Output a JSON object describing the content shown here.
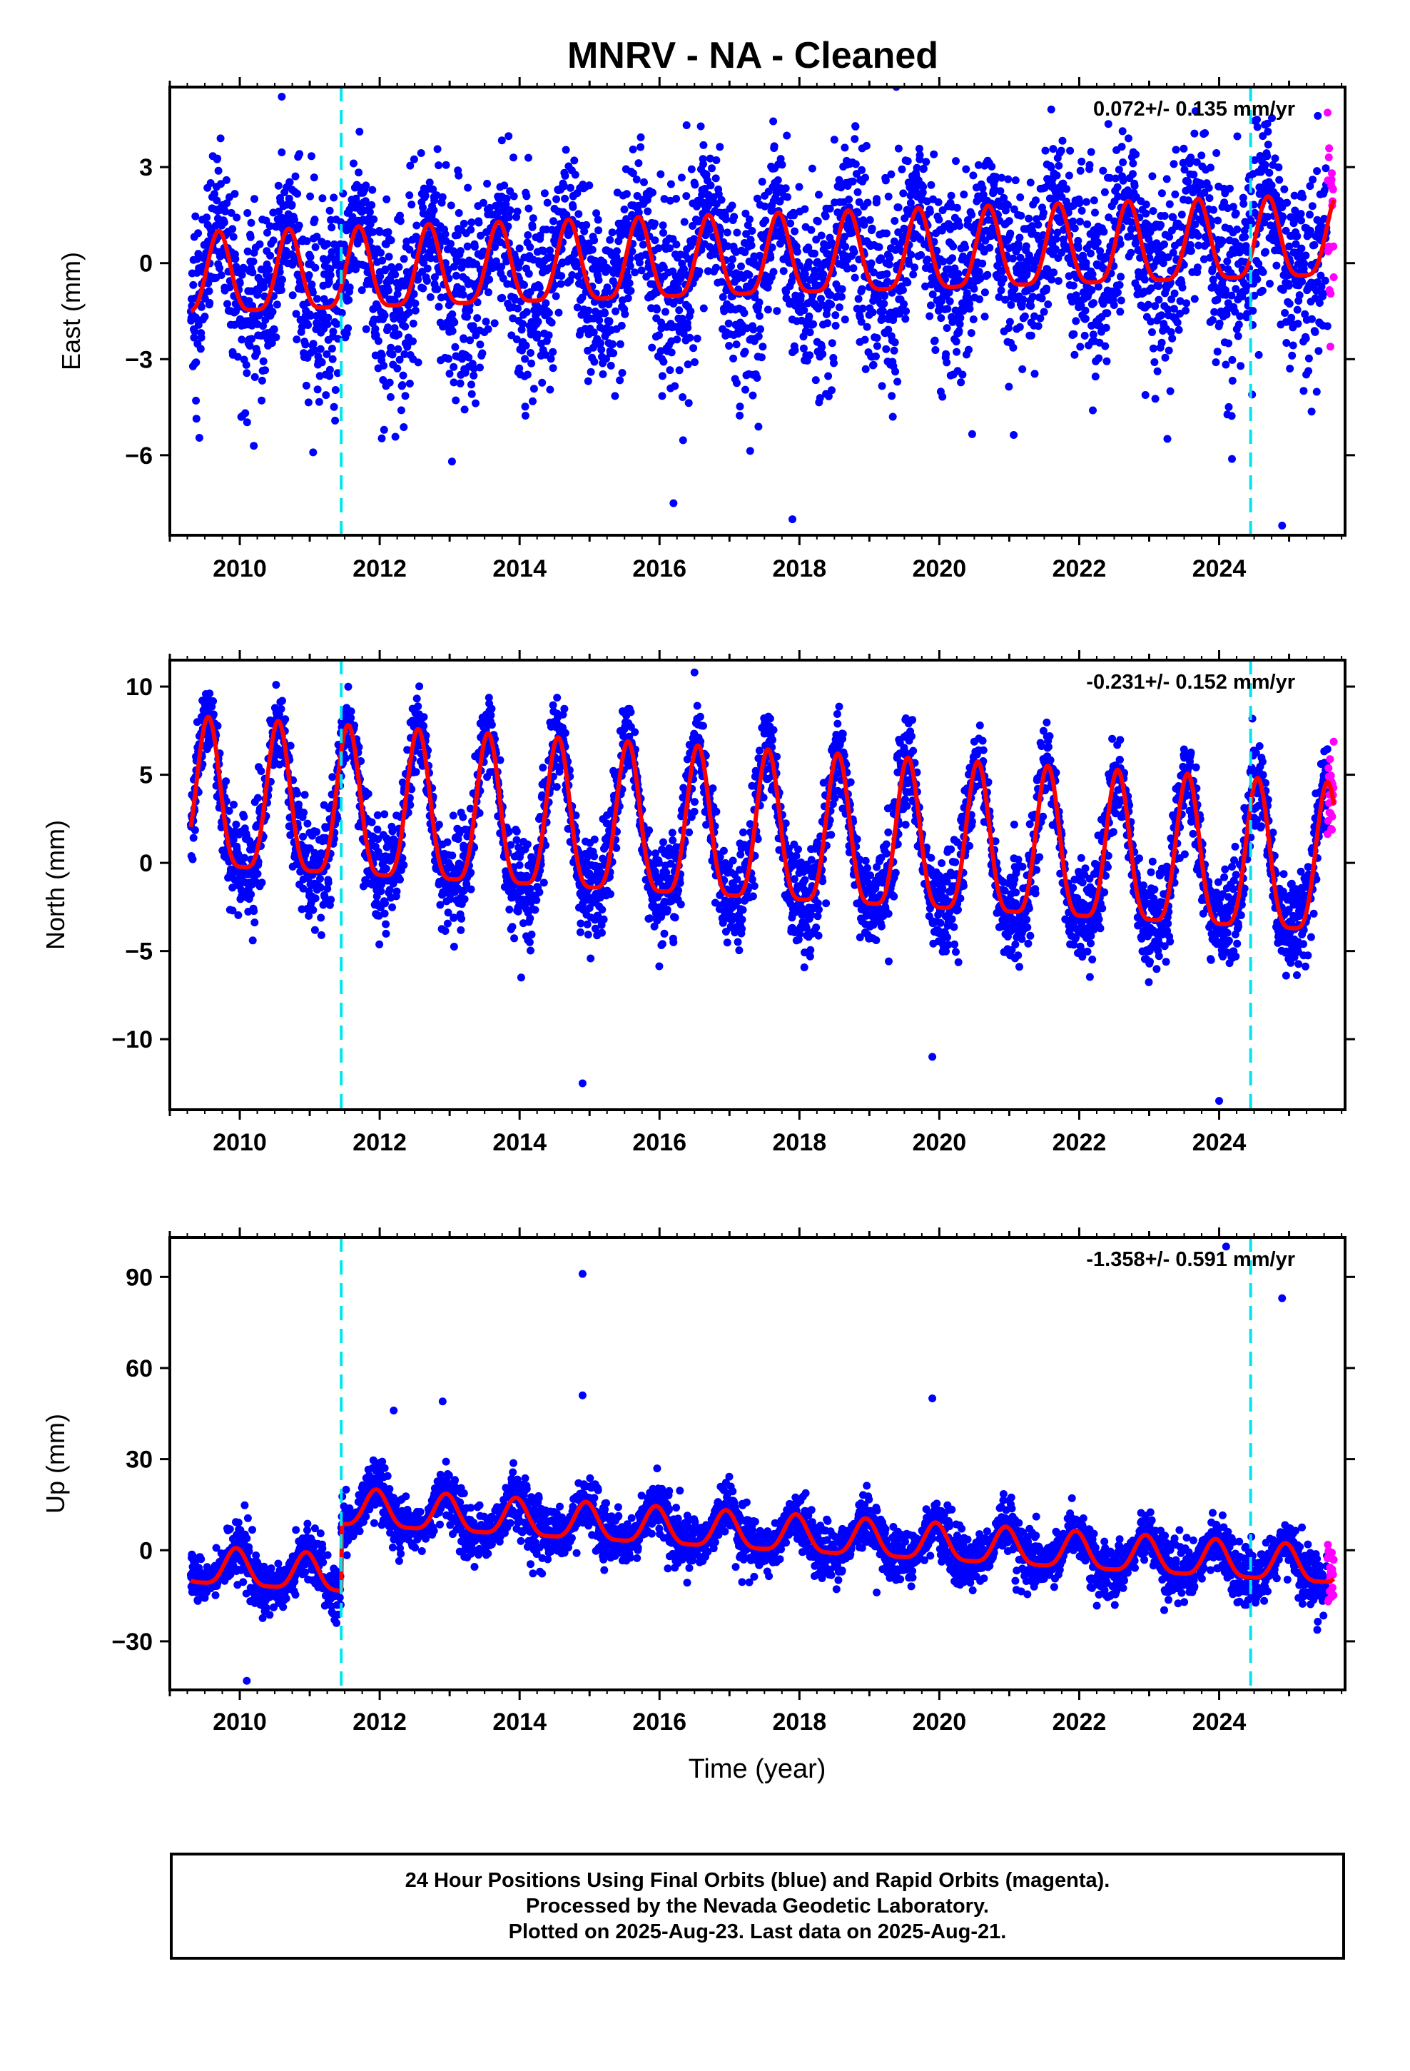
{
  "title": "MNRV  - NA - Cleaned",
  "x_axis_label": "Time (year)",
  "footer": {
    "line1": "24 Hour Positions Using Final Orbits (blue) and Rapid Orbits (magenta).",
    "line2": "Processed by the Nevada Geodetic Laboratory.",
    "line3": "Plotted on 2025-Aug-23. Last data on 2025-Aug-21."
  },
  "colors": {
    "final_orbits": "#0000ff",
    "rapid_orbits": "#ff00ff",
    "model_fit": "#ff0000",
    "events": "#00e5f0"
  },
  "chart_data": [
    {
      "type": "scatter",
      "panel": "East",
      "ylabel": "East (mm)",
      "xlim": [
        2009.0,
        2025.8
      ],
      "ylim": [
        -8.5,
        5.5
      ],
      "xticks": [
        2010,
        2012,
        2014,
        2016,
        2018,
        2020,
        2022,
        2024
      ],
      "yticks": [
        3,
        0,
        -3,
        -6
      ],
      "ytick_labels": [
        "3",
        "0",
        "−3",
        "−6"
      ],
      "rate_text": "0.072+/- 0.135 mm/yr",
      "rate": 0.072,
      "rate_sigma": 0.135,
      "events_years": [
        2011.45,
        2024.45
      ],
      "data_start": 2009.3,
      "data_end": 2025.64,
      "rapid_start": 2025.55,
      "model": {
        "offset": 0.0,
        "amplitude": 1.25,
        "peak_phase": 0.7,
        "step_at": null,
        "step": 0
      },
      "scatter_sigma": 1.3,
      "outliers": [
        [
          2016.2,
          -7.5
        ],
        [
          2017.9,
          -8.0
        ],
        [
          2024.9,
          -8.2
        ],
        [
          2010.6,
          5.2
        ],
        [
          2021.6,
          4.8
        ]
      ]
    },
    {
      "type": "scatter",
      "panel": "North",
      "ylabel": "North (mm)",
      "xlim": [
        2009.0,
        2025.8
      ],
      "ylim": [
        -14.0,
        11.5
      ],
      "xticks": [
        2010,
        2012,
        2014,
        2016,
        2018,
        2020,
        2022,
        2024
      ],
      "yticks": [
        10,
        5,
        0,
        -5,
        -10
      ],
      "ytick_labels": [
        "10",
        "5",
        "0",
        "−5",
        "−10"
      ],
      "rate_text": "-0.231+/- 0.152 mm/yr",
      "rate": -0.231,
      "rate_sigma": 0.152,
      "events_years": [
        2011.45,
        2024.45
      ],
      "data_start": 2009.3,
      "data_end": 2025.64,
      "rapid_start": 2025.55,
      "model": {
        "offset": 1.2,
        "amplitude": 4.2,
        "peak_phase": 0.55,
        "step_at": null,
        "step": 0
      },
      "scatter_sigma": 1.2,
      "outliers": [
        [
          2014.9,
          -12.5
        ],
        [
          2024.0,
          -13.5
        ],
        [
          2016.5,
          10.8
        ],
        [
          2019.9,
          -11.0
        ]
      ]
    },
    {
      "type": "scatter",
      "panel": "Up",
      "ylabel": "Up (mm)",
      "xlim": [
        2009.0,
        2025.8
      ],
      "ylim": [
        -46,
        103
      ],
      "xticks": [
        2010,
        2012,
        2014,
        2016,
        2018,
        2020,
        2022,
        2024
      ],
      "yticks": [
        90,
        60,
        30,
        0,
        -30
      ],
      "ytick_labels": [
        "90",
        "60",
        "30",
        "0",
        "−30"
      ],
      "rate_text": "-1.358+/- 0.591 mm/yr",
      "rate": -1.358,
      "rate_sigma": 0.591,
      "events_years": [
        2011.45,
        2024.45
      ],
      "data_start": 2009.3,
      "data_end": 2025.64,
      "rapid_start": 2025.55,
      "model": {
        "offset": 5.0,
        "amplitude": 6.0,
        "peak_phase": 0.95,
        "step_at": 2011.45,
        "step": 22
      },
      "scatter_sigma": 4.0,
      "outliers": [
        [
          2014.9,
          91
        ],
        [
          2014.9,
          51
        ],
        [
          2019.9,
          50
        ],
        [
          2012.2,
          46
        ],
        [
          2012.9,
          49
        ],
        [
          2010.1,
          -43
        ],
        [
          2024.9,
          83
        ],
        [
          2024.1,
          100
        ]
      ]
    }
  ]
}
